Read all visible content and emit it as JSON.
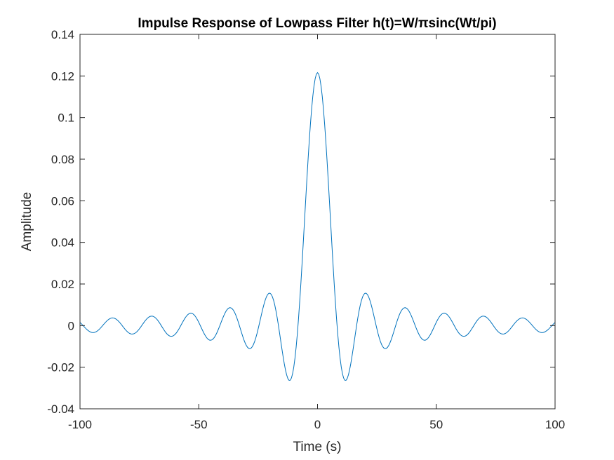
{
  "chart_data": {
    "type": "line",
    "title": "Impulse Response of Lowpass Filter h(t)=W/πsinc(Wt/pi)",
    "xlabel": "Time (s)",
    "ylabel": "Amplitude",
    "xlim": [
      -100,
      100
    ],
    "ylim": [
      -0.04,
      0.14
    ],
    "xticks": [
      -100,
      -50,
      0,
      50,
      100
    ],
    "xtick_labels": [
      "-100",
      "-50",
      "0",
      "50",
      "100"
    ],
    "yticks": [
      -0.04,
      -0.02,
      0,
      0.02,
      0.04,
      0.06,
      0.08,
      0.1,
      0.12,
      0.14
    ],
    "ytick_labels": [
      "-0.04",
      "-0.02",
      "0",
      "0.02",
      "0.04",
      "0.06",
      "0.08",
      "0.1",
      "0.12",
      "0.14"
    ],
    "grid": false,
    "box": true,
    "series": [
      {
        "color": "#0072BD",
        "function": "W/pi*sinc(W*t/pi)",
        "W": 0.382,
        "t_range": [
          -100,
          100
        ],
        "points": 401
      }
    ]
  },
  "colors": {
    "line": "#0072BD",
    "axes": "#262626",
    "background": "#ffffff"
  }
}
